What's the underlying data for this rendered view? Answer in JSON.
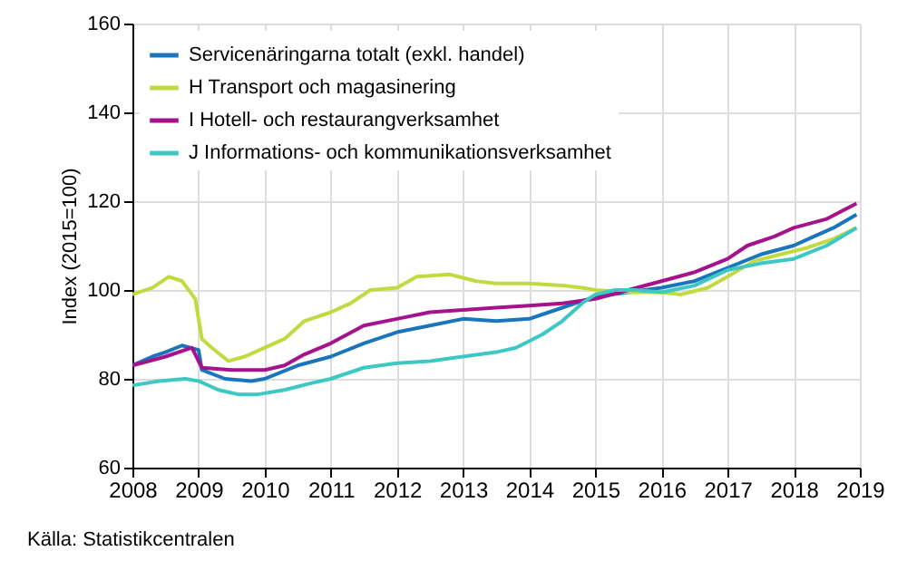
{
  "chart_data": {
    "type": "line",
    "ylabel": "Index (2015=100)",
    "annotations": [
      "Källa: Statistikcentralen"
    ],
    "xlim": [
      2008,
      2019
    ],
    "xticks": [
      2008,
      2009,
      2010,
      2011,
      2012,
      2013,
      2014,
      2015,
      2016,
      2017,
      2018,
      2019
    ],
    "ylim": [
      60,
      160
    ],
    "yticks": [
      60,
      80,
      100,
      120,
      140,
      160
    ],
    "grid": true,
    "legend": "top left",
    "series": [
      {
        "name": "Servicenäringarna totalt (exkl. handel)",
        "color": "#1a75bc",
        "x": [
          2008,
          2008.3,
          2008.5,
          2008.75,
          2009,
          2009.05,
          2009.4,
          2009.8,
          2010,
          2010.5,
          2011,
          2011.5,
          2012,
          2012.5,
          2013,
          2013.5,
          2014,
          2014.3,
          2014.7,
          2015,
          2015.5,
          2016,
          2016.5,
          2017,
          2017.5,
          2018,
          2018.3,
          2018.6,
          2018.95
        ],
        "values": [
          83,
          85,
          86,
          87.5,
          86.5,
          82,
          80,
          79.5,
          80,
          83,
          85,
          88,
          90.5,
          92,
          93.5,
          93,
          93.5,
          95,
          97,
          98.5,
          99.5,
          100.5,
          102,
          105,
          108,
          110,
          112,
          114,
          117
        ]
      },
      {
        "name": "H Transport och magasinering",
        "color": "#c3d940",
        "x": [
          2008,
          2008.3,
          2008.55,
          2008.75,
          2008.95,
          2009.05,
          2009.2,
          2009.45,
          2009.7,
          2010,
          2010.3,
          2010.6,
          2011,
          2011.3,
          2011.6,
          2012,
          2012.3,
          2012.8,
          2013.2,
          2013.5,
          2014,
          2014.5,
          2014.8,
          2015,
          2015.5,
          2016,
          2016.3,
          2016.7,
          2017,
          2017.4,
          2017.8,
          2018.2,
          2018.6,
          2018.95
        ],
        "values": [
          99,
          100.5,
          103,
          102,
          98,
          89,
          87,
          84,
          85,
          87,
          89,
          93,
          95,
          97,
          100,
          100.5,
          103,
          103.5,
          102,
          101.5,
          101.5,
          101,
          100.5,
          100,
          99.5,
          99.5,
          99,
          100.5,
          103,
          106.5,
          108,
          109.5,
          111.5,
          114
        ]
      },
      {
        "name": "I Hotell- och restaurangverksamhet",
        "color": "#a5128c",
        "x": [
          2008,
          2008.5,
          2008.9,
          2009.05,
          2009.5,
          2010,
          2010.3,
          2010.6,
          2011,
          2011.5,
          2012,
          2012.5,
          2013,
          2013.5,
          2014,
          2014.5,
          2015,
          2015.5,
          2016,
          2016.5,
          2017,
          2017.3,
          2017.7,
          2018,
          2018.5,
          2018.95
        ],
        "values": [
          83,
          85,
          87,
          82.5,
          82,
          82,
          83,
          85.5,
          88,
          92,
          93.5,
          95,
          95.5,
          96,
          96.5,
          97,
          98,
          100,
          102,
          104,
          107,
          110,
          112,
          114,
          116,
          119.5
        ]
      },
      {
        "name": "J Informations- och kommunikationsverksamhet",
        "color": "#3dc8c4",
        "x": [
          2008,
          2008.4,
          2008.8,
          2009,
          2009.3,
          2009.6,
          2009.9,
          2010.3,
          2010.7,
          2011,
          2011.5,
          2012,
          2012.5,
          2013,
          2013.5,
          2013.8,
          2014.2,
          2014.5,
          2014.8,
          2015,
          2015.3,
          2015.6,
          2016,
          2016.5,
          2017,
          2017.5,
          2018,
          2018.5,
          2018.95
        ],
        "values": [
          78.5,
          79.5,
          80,
          79.5,
          77.5,
          76.5,
          76.5,
          77.5,
          79,
          80,
          82.5,
          83.5,
          84,
          85,
          86,
          87,
          90,
          93,
          97,
          99,
          100,
          100,
          99.5,
          101,
          104.5,
          106,
          107,
          110,
          114
        ]
      }
    ]
  }
}
